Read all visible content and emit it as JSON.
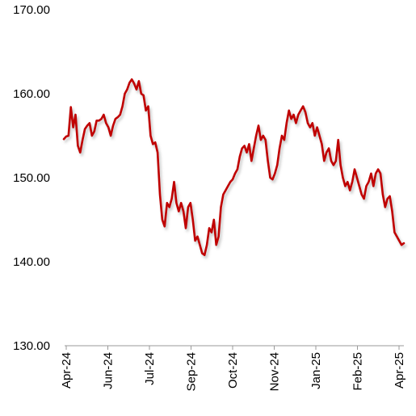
{
  "chart_data": {
    "type": "line",
    "title": "",
    "xlabel": "",
    "ylabel": "",
    "ylim": [
      130,
      170
    ],
    "y_ticks": [
      "130.00",
      "140.00",
      "150.00",
      "160.00",
      "170.00"
    ],
    "x_ticks": [
      "Apr-24",
      "Jun-24",
      "Jul-24",
      "Sep-24",
      "Oct-24",
      "Nov-24",
      "Jan-25",
      "Feb-25",
      "Apr-25"
    ],
    "grid": false,
    "legend": "none",
    "line_color": "#c00000",
    "series": [
      {
        "values": [
          154.6,
          154.9,
          155.0,
          158.4,
          156.0,
          157.5,
          153.8,
          153.0,
          154.5,
          155.8,
          156.2,
          156.5,
          155.0,
          155.5,
          156.8,
          156.8,
          157.0,
          157.5,
          156.5,
          156.0,
          155.0,
          156.2,
          157.0,
          157.2,
          157.5,
          158.5,
          160.0,
          160.5,
          161.3,
          161.7,
          161.2,
          160.5,
          161.5,
          160.0,
          159.8,
          158.0,
          158.5,
          155.0,
          154.0,
          154.2,
          153.0,
          148.0,
          145.0,
          144.2,
          147.0,
          146.5,
          147.5,
          149.5,
          147.0,
          146.0,
          147.0,
          146.0,
          144.0,
          146.5,
          147.0,
          145.0,
          142.5,
          143.0,
          142.0,
          141.0,
          140.8,
          142.0,
          144.0,
          143.5,
          145.0,
          142.0,
          143.0,
          146.5,
          148.0,
          148.5,
          149.0,
          149.5,
          149.8,
          150.5,
          151.0,
          152.5,
          153.5,
          153.8,
          153.0,
          154.0,
          152.0,
          153.5,
          155.0,
          156.2,
          154.5,
          155.0,
          154.5,
          152.0,
          150.0,
          149.8,
          150.5,
          151.5,
          153.5,
          155.0,
          154.5,
          156.5,
          158.0,
          157.0,
          157.5,
          156.5,
          157.5,
          158.0,
          158.5,
          157.8,
          156.5,
          156.0,
          156.5,
          155.0,
          156.0,
          155.0,
          154.0,
          152.0,
          153.0,
          153.5,
          152.0,
          151.5,
          152.0,
          154.5,
          151.5,
          150.0,
          149.0,
          149.5,
          148.5,
          149.5,
          151.0,
          150.0,
          149.0,
          148.0,
          147.5,
          149.0,
          149.5,
          150.5,
          149.0,
          150.5,
          151.0,
          150.5,
          148.0,
          146.5,
          147.5,
          147.8,
          146.0,
          143.5,
          143.0,
          142.5,
          142.0,
          142.2
        ]
      }
    ]
  }
}
